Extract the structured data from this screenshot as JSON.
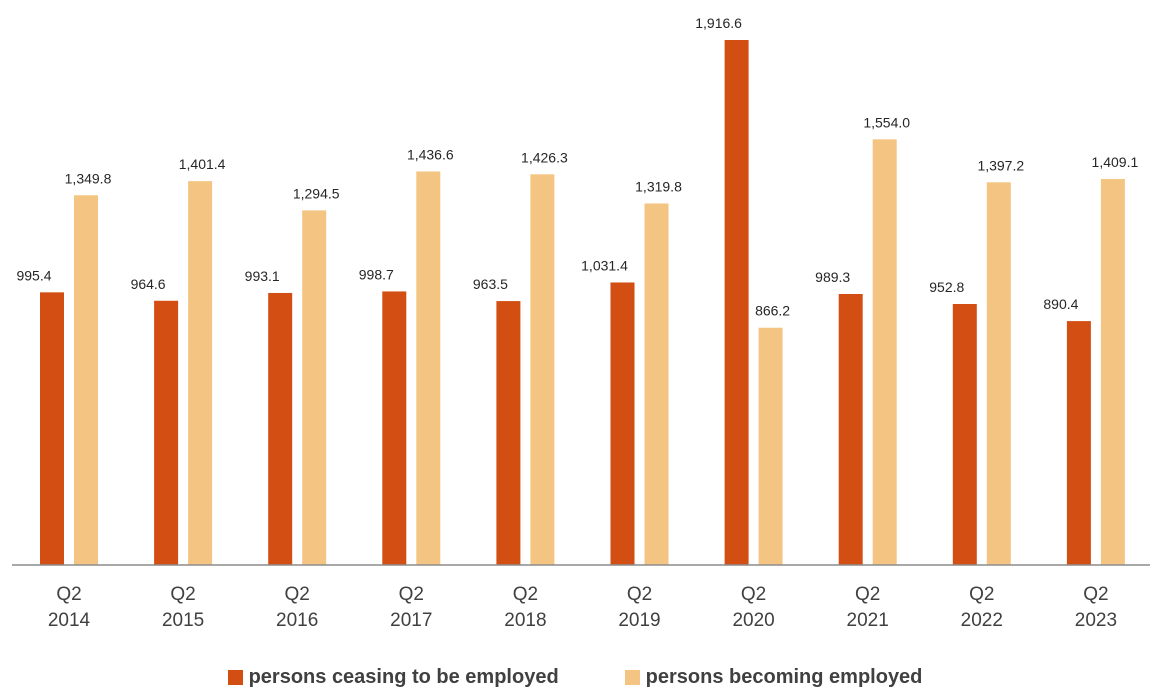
{
  "chart_data": {
    "type": "bar",
    "title": "",
    "xlabel": "",
    "ylabel": "",
    "categories": [
      [
        "Q2",
        "2014"
      ],
      [
        "Q2",
        "2015"
      ],
      [
        "Q2",
        "2016"
      ],
      [
        "Q2",
        "2017"
      ],
      [
        "Q2",
        "2018"
      ],
      [
        "Q2",
        "2019"
      ],
      [
        "Q2",
        "2020"
      ],
      [
        "Q2",
        "2021"
      ],
      [
        "Q2",
        "2022"
      ],
      [
        "Q2",
        "2023"
      ]
    ],
    "series": [
      {
        "name": "persons ceasing to be employed",
        "color": "#d24e13",
        "values": [
          995.4,
          964.6,
          993.1,
          998.7,
          963.5,
          1031.4,
          1916.6,
          989.3,
          952.8,
          890.4
        ],
        "labels": [
          "995.4",
          "964.6",
          "993.1",
          "998.7",
          "963.5",
          "1,031.4",
          "1,916.6",
          "989.3",
          "952.8",
          "890.4"
        ]
      },
      {
        "name": "persons becoming employed",
        "color": "#f4c582",
        "values": [
          1349.8,
          1401.4,
          1294.5,
          1436.6,
          1426.3,
          1319.8,
          866.2,
          1554.0,
          1397.2,
          1409.1
        ],
        "labels": [
          "1,349.8",
          "1,401.4",
          "1,294.5",
          "1,436.6",
          "1,426.3",
          "1,319.8",
          "866.2",
          "1,554.0",
          "1,397.2",
          "1,409.1"
        ]
      }
    ],
    "ylim": [
      0,
      1916.6
    ],
    "grid": false,
    "legend_position": "bottom"
  }
}
